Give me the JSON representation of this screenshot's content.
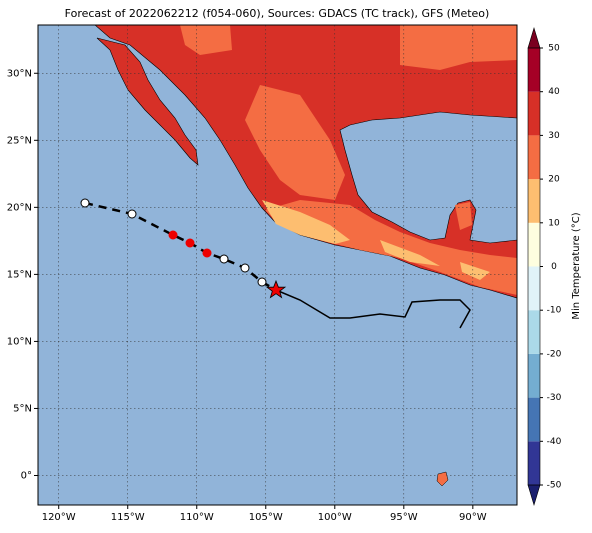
{
  "map": {
    "title": "Forecast of 2022062212 (f054-060), Sources: GDACS (TC track), GFS (Meteo)",
    "lonlim": [
      -121.5,
      -86.8
    ],
    "latlim": [
      -2.2,
      33.6
    ],
    "lon_ticks": [
      {
        "value": -120,
        "label": "120°W"
      },
      {
        "value": -115,
        "label": "115°W"
      },
      {
        "value": -110,
        "label": "110°W"
      },
      {
        "value": -105,
        "label": "105°W"
      },
      {
        "value": -100,
        "label": "100°W"
      },
      {
        "value": -95,
        "label": "95°W"
      },
      {
        "value": -90,
        "label": "90°W"
      }
    ],
    "lat_ticks": [
      {
        "value": 0,
        "label": "0°"
      },
      {
        "value": 5,
        "label": "5°N"
      },
      {
        "value": 10,
        "label": "10°N"
      },
      {
        "value": 15,
        "label": "15°N"
      },
      {
        "value": 20,
        "label": "20°N"
      },
      {
        "value": 25,
        "label": "25°N"
      },
      {
        "value": 30,
        "label": "30°N"
      }
    ],
    "grid": true,
    "colorbar": {
      "label": "Min Temperature (°C)",
      "lim": [
        -50,
        50
      ],
      "ticks": [
        -50,
        -40,
        -30,
        -20,
        -10,
        0,
        10,
        20,
        30,
        40,
        50
      ],
      "colors": [
        "#313695",
        "#4575b4",
        "#74add1",
        "#abd9e9",
        "#e0f3f8",
        "#fefedf",
        "#fdbe70",
        "#f46d43",
        "#d73027",
        "#a50026"
      ],
      "under_color": "#1a1f6e",
      "over_color": "#7a0020"
    }
  }
}
